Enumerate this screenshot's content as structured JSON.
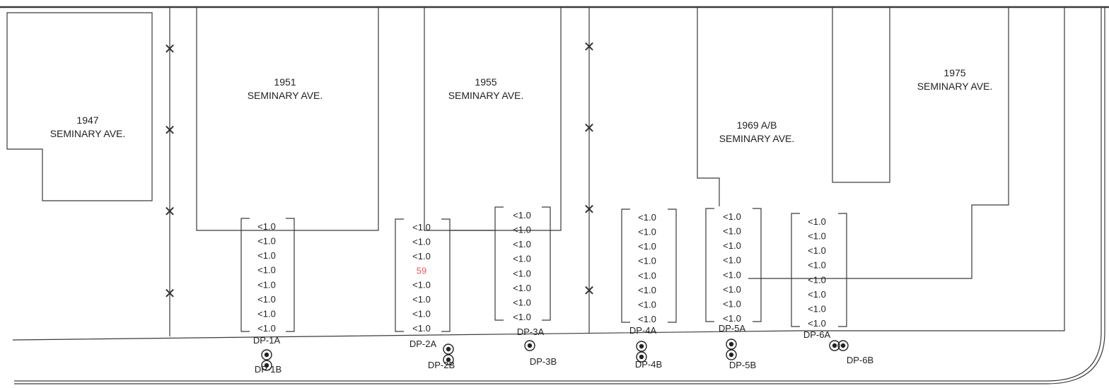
{
  "buildings": [
    {
      "id": "b1947",
      "number": "1947",
      "street": "SEMINARY AVE."
    },
    {
      "id": "b1951",
      "number": "1951",
      "street": "SEMINARY AVE."
    },
    {
      "id": "b1955",
      "number": "1955",
      "street": "SEMINARY AVE."
    },
    {
      "id": "b1969",
      "number": "1969 A/B",
      "street": "SEMINARY AVE."
    },
    {
      "id": "b1975",
      "number": "1975",
      "street": "SEMINARY AVE."
    }
  ],
  "sample_columns": [
    {
      "id": "dp1",
      "values": [
        "<1.0",
        "<1.0",
        "<1.0",
        "<1.0",
        "<1.0",
        "<1.0",
        "<1.0",
        "<1.0"
      ]
    },
    {
      "id": "dp2",
      "values": [
        "<1.0",
        "<1.0",
        "<1.0",
        "59",
        "<1.0",
        "<1.0",
        "<1.0",
        "<1.0"
      ]
    },
    {
      "id": "dp3",
      "values": [
        "<1.0",
        "<1.0",
        "<1.0",
        "<1.0",
        "<1.0",
        "<1.0",
        "<1.0",
        "<1.0"
      ]
    },
    {
      "id": "dp4",
      "values": [
        "<1.0",
        "<1.0",
        "<1.0",
        "<1.0",
        "<1.0",
        "<1.0",
        "<1.0",
        "<1.0"
      ]
    },
    {
      "id": "dp5",
      "values": [
        "<1.0",
        "<1.0",
        "<1.0",
        "<1.0",
        "<1.0",
        "<1.0",
        "<1.0",
        "<1.0"
      ]
    },
    {
      "id": "dp6",
      "values": [
        "<1.0",
        "<1.0",
        "<1.0",
        "<1.0",
        "<1.0",
        "<1.0",
        "<1.0",
        "<1.0"
      ]
    }
  ],
  "highlight_color": "#e8595a",
  "sample_points": [
    {
      "a": "DP-1A",
      "b": "DP-1B"
    },
    {
      "a": "DP-2A",
      "b": "DP-2B"
    },
    {
      "a": "DP-3A",
      "b": "DP-3B"
    },
    {
      "a": "DP-4A",
      "b": "DP-4B"
    },
    {
      "a": "DP-5A",
      "b": "DP-5B"
    },
    {
      "a": "DP-6A",
      "b": "DP-6B"
    }
  ],
  "fence_mark": "✕"
}
